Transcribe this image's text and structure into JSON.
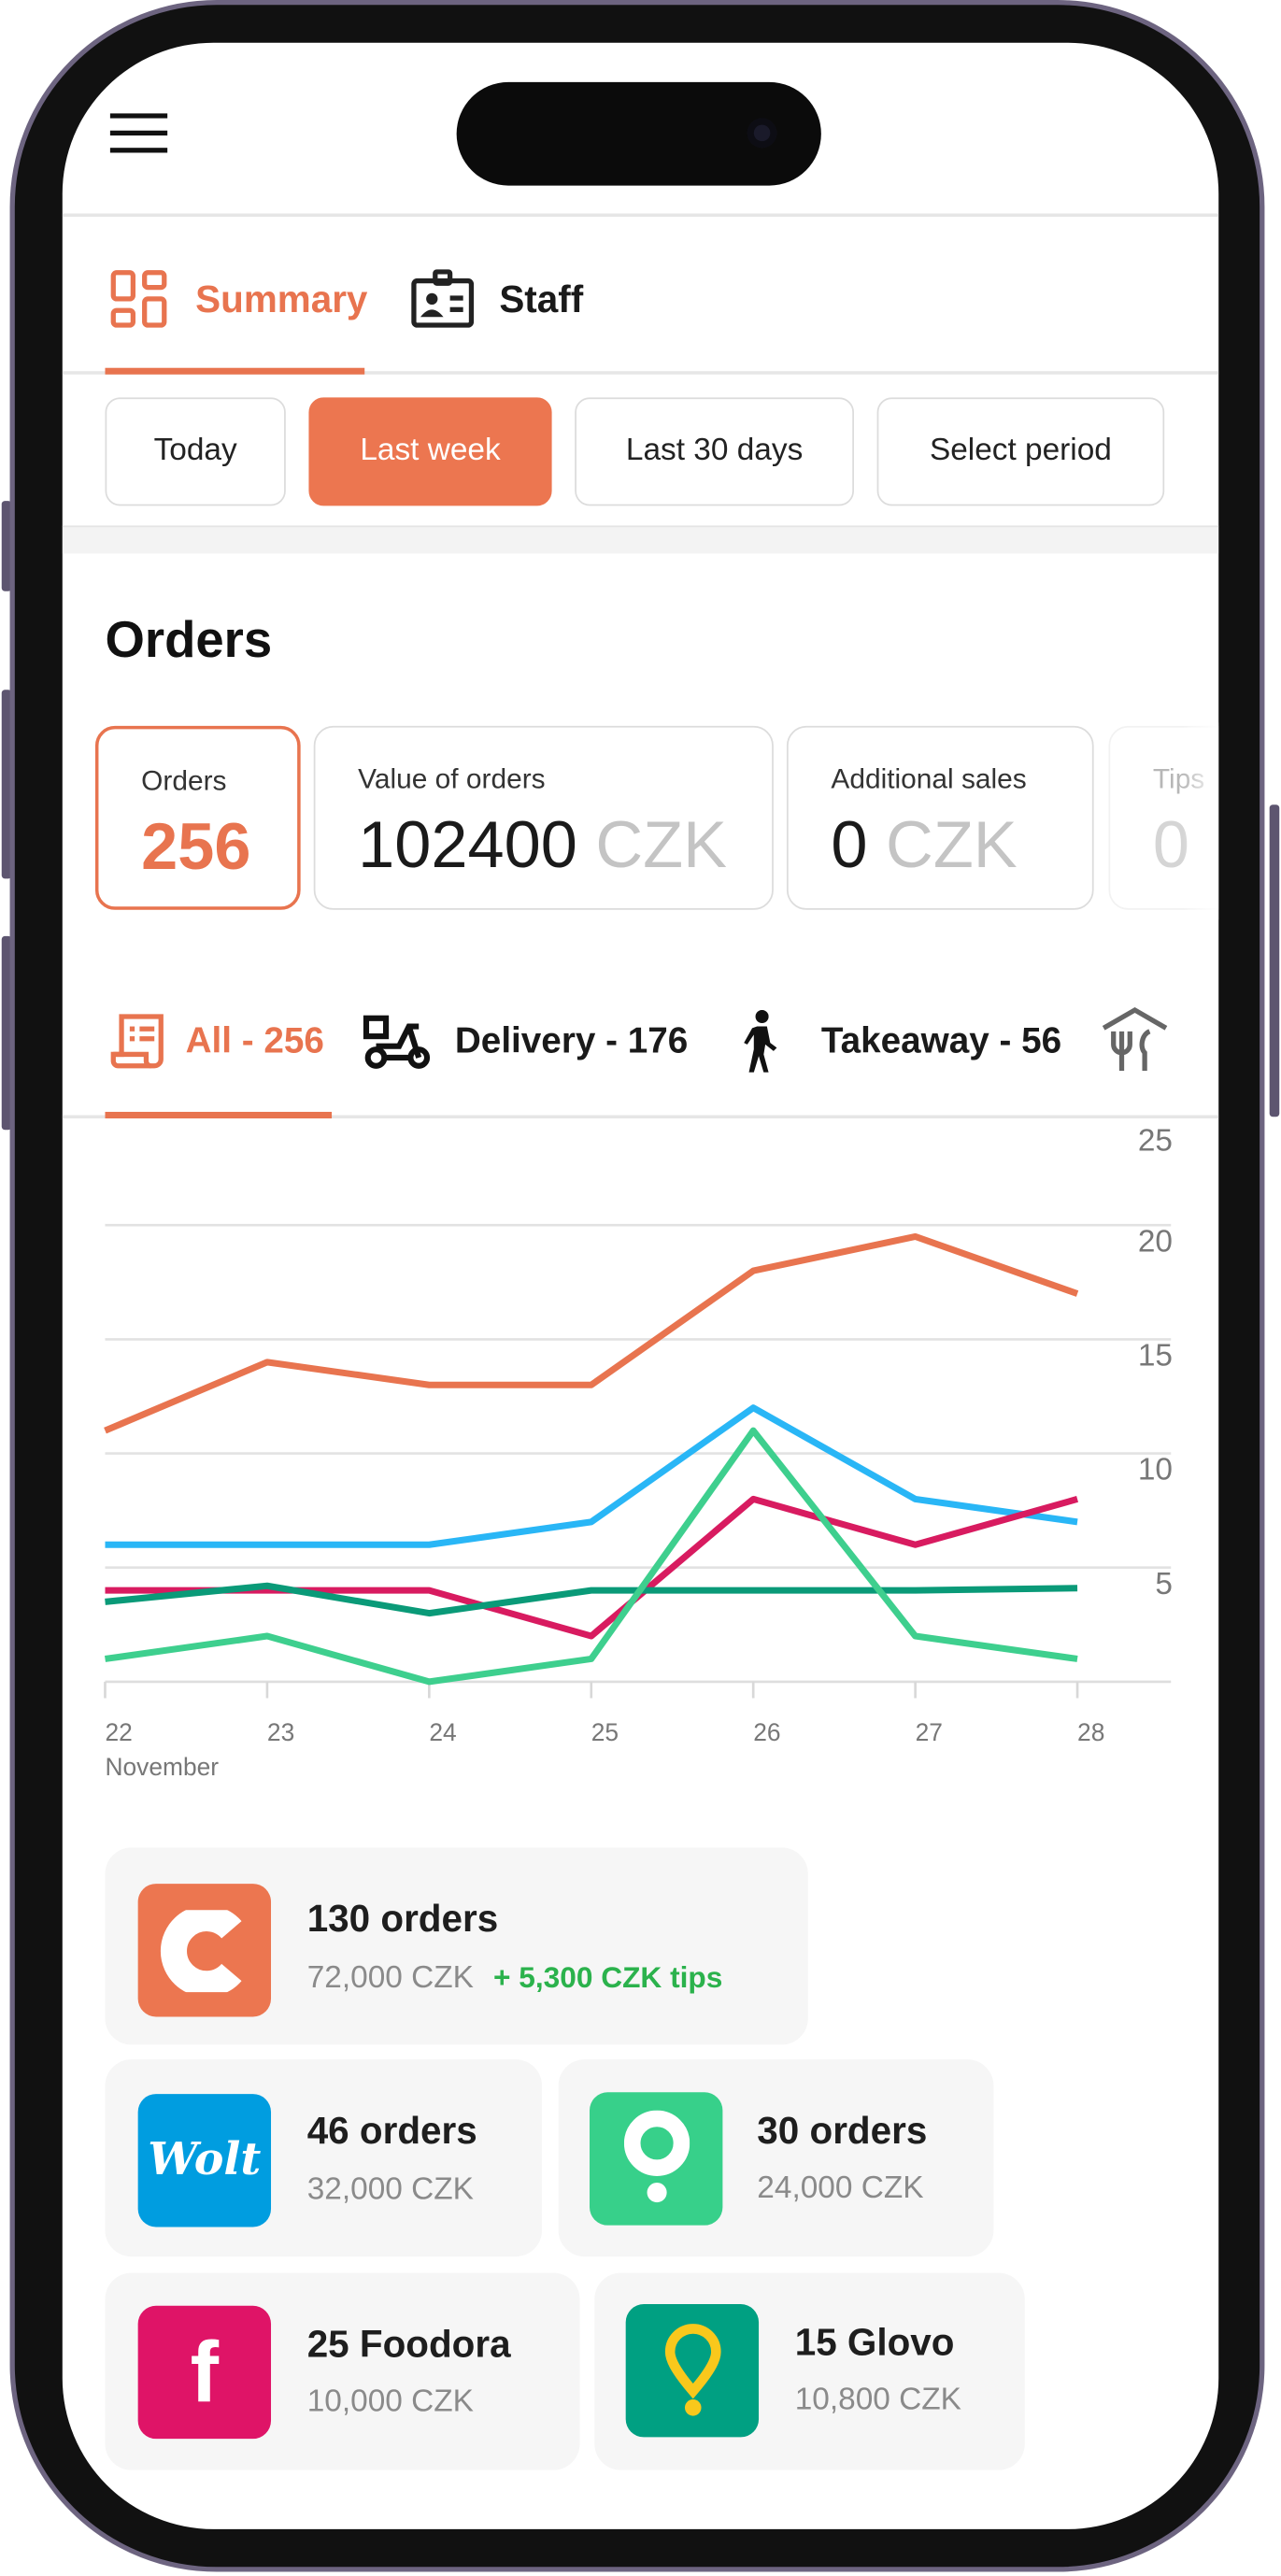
{
  "header": {
    "menu_icon": "hamburger-icon"
  },
  "tabs": [
    {
      "label": "Summary",
      "icon": "dashboard-grid-icon",
      "active": true
    },
    {
      "label": "Staff",
      "icon": "id-badge-icon",
      "active": false
    }
  ],
  "periods": [
    {
      "label": "Today"
    },
    {
      "label": "Last week",
      "active": true
    },
    {
      "label": "Last 30 days"
    },
    {
      "label": "Select period"
    }
  ],
  "section_title": "Orders",
  "kpis": [
    {
      "label": "Orders",
      "value": "256",
      "unit": ""
    },
    {
      "label": "Value of orders",
      "value": "102400",
      "unit": "CZK"
    },
    {
      "label": "Additional sales",
      "value": "0",
      "unit": "CZK"
    },
    {
      "label": "Tips",
      "value": "0",
      "unit": ""
    }
  ],
  "channels": [
    {
      "label": "All - 256",
      "icon": "receipt-icon",
      "active": true
    },
    {
      "label": "Delivery - 176",
      "icon": "scooter-icon"
    },
    {
      "label": "Takeaway - 56",
      "icon": "walking-person-icon"
    },
    {
      "label": "",
      "icon": "dine-in-icon"
    }
  ],
  "colors": {
    "accent": "#ec7650",
    "tips": "#2bb24c"
  },
  "chart_data": {
    "type": "line",
    "categories": [
      "22",
      "23",
      "24",
      "25",
      "26",
      "27",
      "28"
    ],
    "x_sublabel": "November",
    "ylim": [
      0,
      25
    ],
    "yticks": [
      5,
      10,
      15,
      20,
      25
    ],
    "grid": true,
    "y_axis_side": "right",
    "series": [
      {
        "color": "#e8744f",
        "values": [
          11,
          14,
          13,
          13,
          18,
          19.5,
          17
        ]
      },
      {
        "color": "#29b6f6",
        "values": [
          6,
          6,
          6,
          7,
          12,
          8,
          7
        ]
      },
      {
        "color": "#d81b60",
        "values": [
          4,
          4,
          4,
          2,
          8,
          6,
          8
        ]
      },
      {
        "color": "#0a9a78",
        "values": [
          3.5,
          4.2,
          3,
          4,
          4,
          4,
          4.1
        ]
      },
      {
        "color": "#3ecf8e",
        "values": [
          1,
          2,
          0,
          1,
          11,
          2,
          1
        ]
      }
    ]
  },
  "platforms": [
    {
      "title": "130 orders",
      "amount": "72,000 CZK",
      "tips": "+ 5,300 CZK tips",
      "logo_text": "C",
      "color": "#ec7650"
    },
    {
      "title": "46 orders",
      "amount": "32,000 CZK",
      "logo_text": "Wolt",
      "color": "#009de0"
    },
    {
      "title": "30 orders",
      "amount": "24,000 CZK",
      "logo_text": "",
      "color": "#37d08a"
    },
    {
      "title": "25 Foodora",
      "amount": "10,000 CZK",
      "logo_text": "f",
      "color": "#df1467"
    },
    {
      "title": "15 Glovo",
      "amount": "10,800 CZK",
      "logo_text": "",
      "color": "#00a082"
    }
  ]
}
